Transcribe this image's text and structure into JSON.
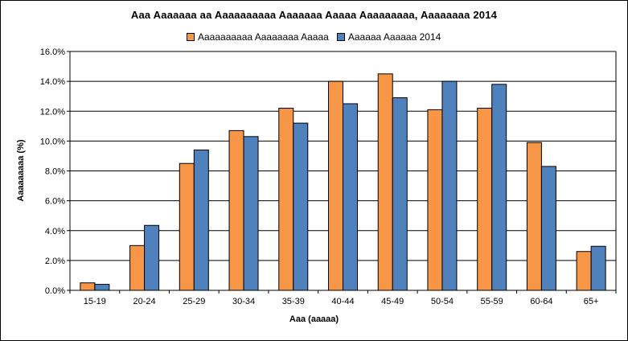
{
  "chart_data": {
    "type": "bar",
    "title": "Aaa Aaaaaaa aa Aaaaaaaaaa Aaaaaaa Aaaaa Aaaaaaaaa, Aaaaaaaa 2014",
    "xlabel": "Aaa (aaaaa)",
    "ylabel": "Aaaaaaaaa (%)",
    "ylim": [
      0,
      16
    ],
    "yticks": [
      "0.0%",
      "2.0%",
      "4.0%",
      "6.0%",
      "8.0%",
      "10.0%",
      "12.0%",
      "14.0%",
      "16.0%"
    ],
    "grid": true,
    "legend_position": "top",
    "categories": [
      "15-19",
      "20-24",
      "25-29",
      "30-34",
      "35-39",
      "40-44",
      "45-49",
      "50-54",
      "55-59",
      "60-64",
      "65+"
    ],
    "series": [
      {
        "name": "Aaaaaaaaaa Aaaaaaaa Aaaaa",
        "color": "#F79646",
        "values": [
          0.5,
          3.0,
          8.5,
          10.7,
          12.2,
          14.0,
          14.5,
          12.1,
          12.2,
          9.9,
          2.6
        ]
      },
      {
        "name": "Aaaaaa Aaaaaa 2014",
        "color": "#4F81BD",
        "values": [
          0.4,
          4.35,
          9.4,
          10.3,
          11.2,
          12.5,
          12.9,
          14.0,
          13.8,
          8.3,
          2.95
        ]
      }
    ]
  }
}
